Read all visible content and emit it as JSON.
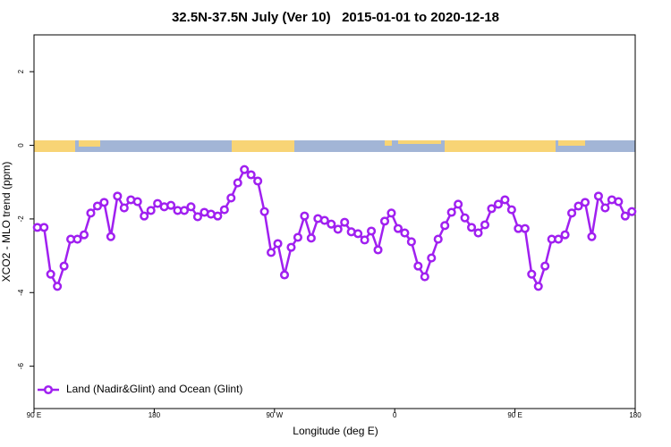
{
  "chart_data": {
    "type": "line",
    "title": "32.5N-37.5N July (Ver 10)   2015-01-01 to 2020-12-18",
    "x_label": "Longitude (deg E)",
    "y_label": "XCO2 - MLO trend (ppm)",
    "x": [
      92.5,
      97.5,
      102.5,
      107.5,
      112.5,
      117.5,
      122.5,
      127.5,
      132.5,
      137.5,
      142.5,
      147.5,
      152.5,
      157.5,
      162.5,
      167.5,
      172.5,
      177.5,
      182.5,
      187.5,
      192.5,
      197.5,
      202.5,
      207.5,
      212.5,
      217.5,
      222.5,
      227.5,
      232.5,
      237.5,
      242.5,
      247.5,
      252.5,
      257.5,
      262.5,
      267.5,
      272.5,
      277.5,
      282.5,
      287.5,
      292.5,
      297.5,
      302.5,
      307.5,
      312.5,
      317.5,
      322.5,
      327.5,
      332.5,
      337.5,
      342.5,
      347.5,
      352.5,
      357.5,
      362.5,
      367.5,
      372.5,
      377.5,
      382.5,
      387.5,
      392.5,
      397.5,
      402.5,
      407.5,
      412.5,
      417.5,
      422.5,
      427.5,
      432.5,
      437.5,
      442.5,
      447.5,
      452.5,
      457.5,
      462.5,
      467.5,
      472.5,
      477.5,
      482.5,
      487.5,
      492.5,
      497.5,
      502.5,
      507.5,
      512.5,
      517.5,
      522.5,
      527.5,
      532.5,
      537.5
    ],
    "series": [
      {
        "name": "Land (Nadir&Glint) and Ocean (Glint)",
        "color": "#a020f0",
        "values": [
          -2.23,
          -2.23,
          -3.5,
          -3.83,
          -3.28,
          -2.55,
          -2.55,
          -2.43,
          -1.84,
          -1.65,
          -1.55,
          -2.48,
          -1.38,
          -1.7,
          -1.48,
          -1.53,
          -1.92,
          -1.77,
          -1.58,
          -1.67,
          -1.63,
          -1.77,
          -1.77,
          -1.67,
          -1.94,
          -1.82,
          -1.87,
          -1.92,
          -1.75,
          -1.43,
          -1.02,
          -0.66,
          -0.8,
          -0.97,
          -1.8,
          -2.91,
          -2.67,
          -3.52,
          -2.77,
          -2.5,
          -1.92,
          -2.52,
          -1.99,
          -2.04,
          -2.14,
          -2.28,
          -2.09,
          -2.35,
          -2.4,
          -2.57,
          -2.33,
          -2.84,
          -2.06,
          -1.84,
          -2.26,
          -2.38,
          -2.62,
          -3.28,
          -3.57,
          -3.06,
          -2.55,
          -2.18,
          -1.82,
          -1.6,
          -1.97,
          -2.23,
          -2.38,
          -2.16,
          -1.72,
          -1.6,
          -1.48,
          -1.75,
          -2.26,
          -2.26,
          -3.5,
          -3.83,
          -3.28,
          -2.55,
          -2.55,
          -2.43,
          -1.84,
          -1.65,
          -1.55,
          -2.48,
          -1.38,
          -1.7,
          -1.48,
          -1.53,
          -1.92,
          -1.8
        ]
      }
    ],
    "xlim": [
      90,
      540
    ],
    "xticks": [
      {
        "value": 90,
        "label": "90 E"
      },
      180,
      {
        "value": 270,
        "label": "90 W"
      },
      {
        "value": 360,
        "label": "0"
      },
      {
        "value": 450,
        "label": "90 E"
      },
      {
        "value": 540,
        "label": "180"
      }
    ],
    "ylim": [
      -7.15,
      3
    ],
    "yticks": [
      2,
      0,
      -2,
      -4,
      -6
    ],
    "legend": "bottom-left"
  }
}
